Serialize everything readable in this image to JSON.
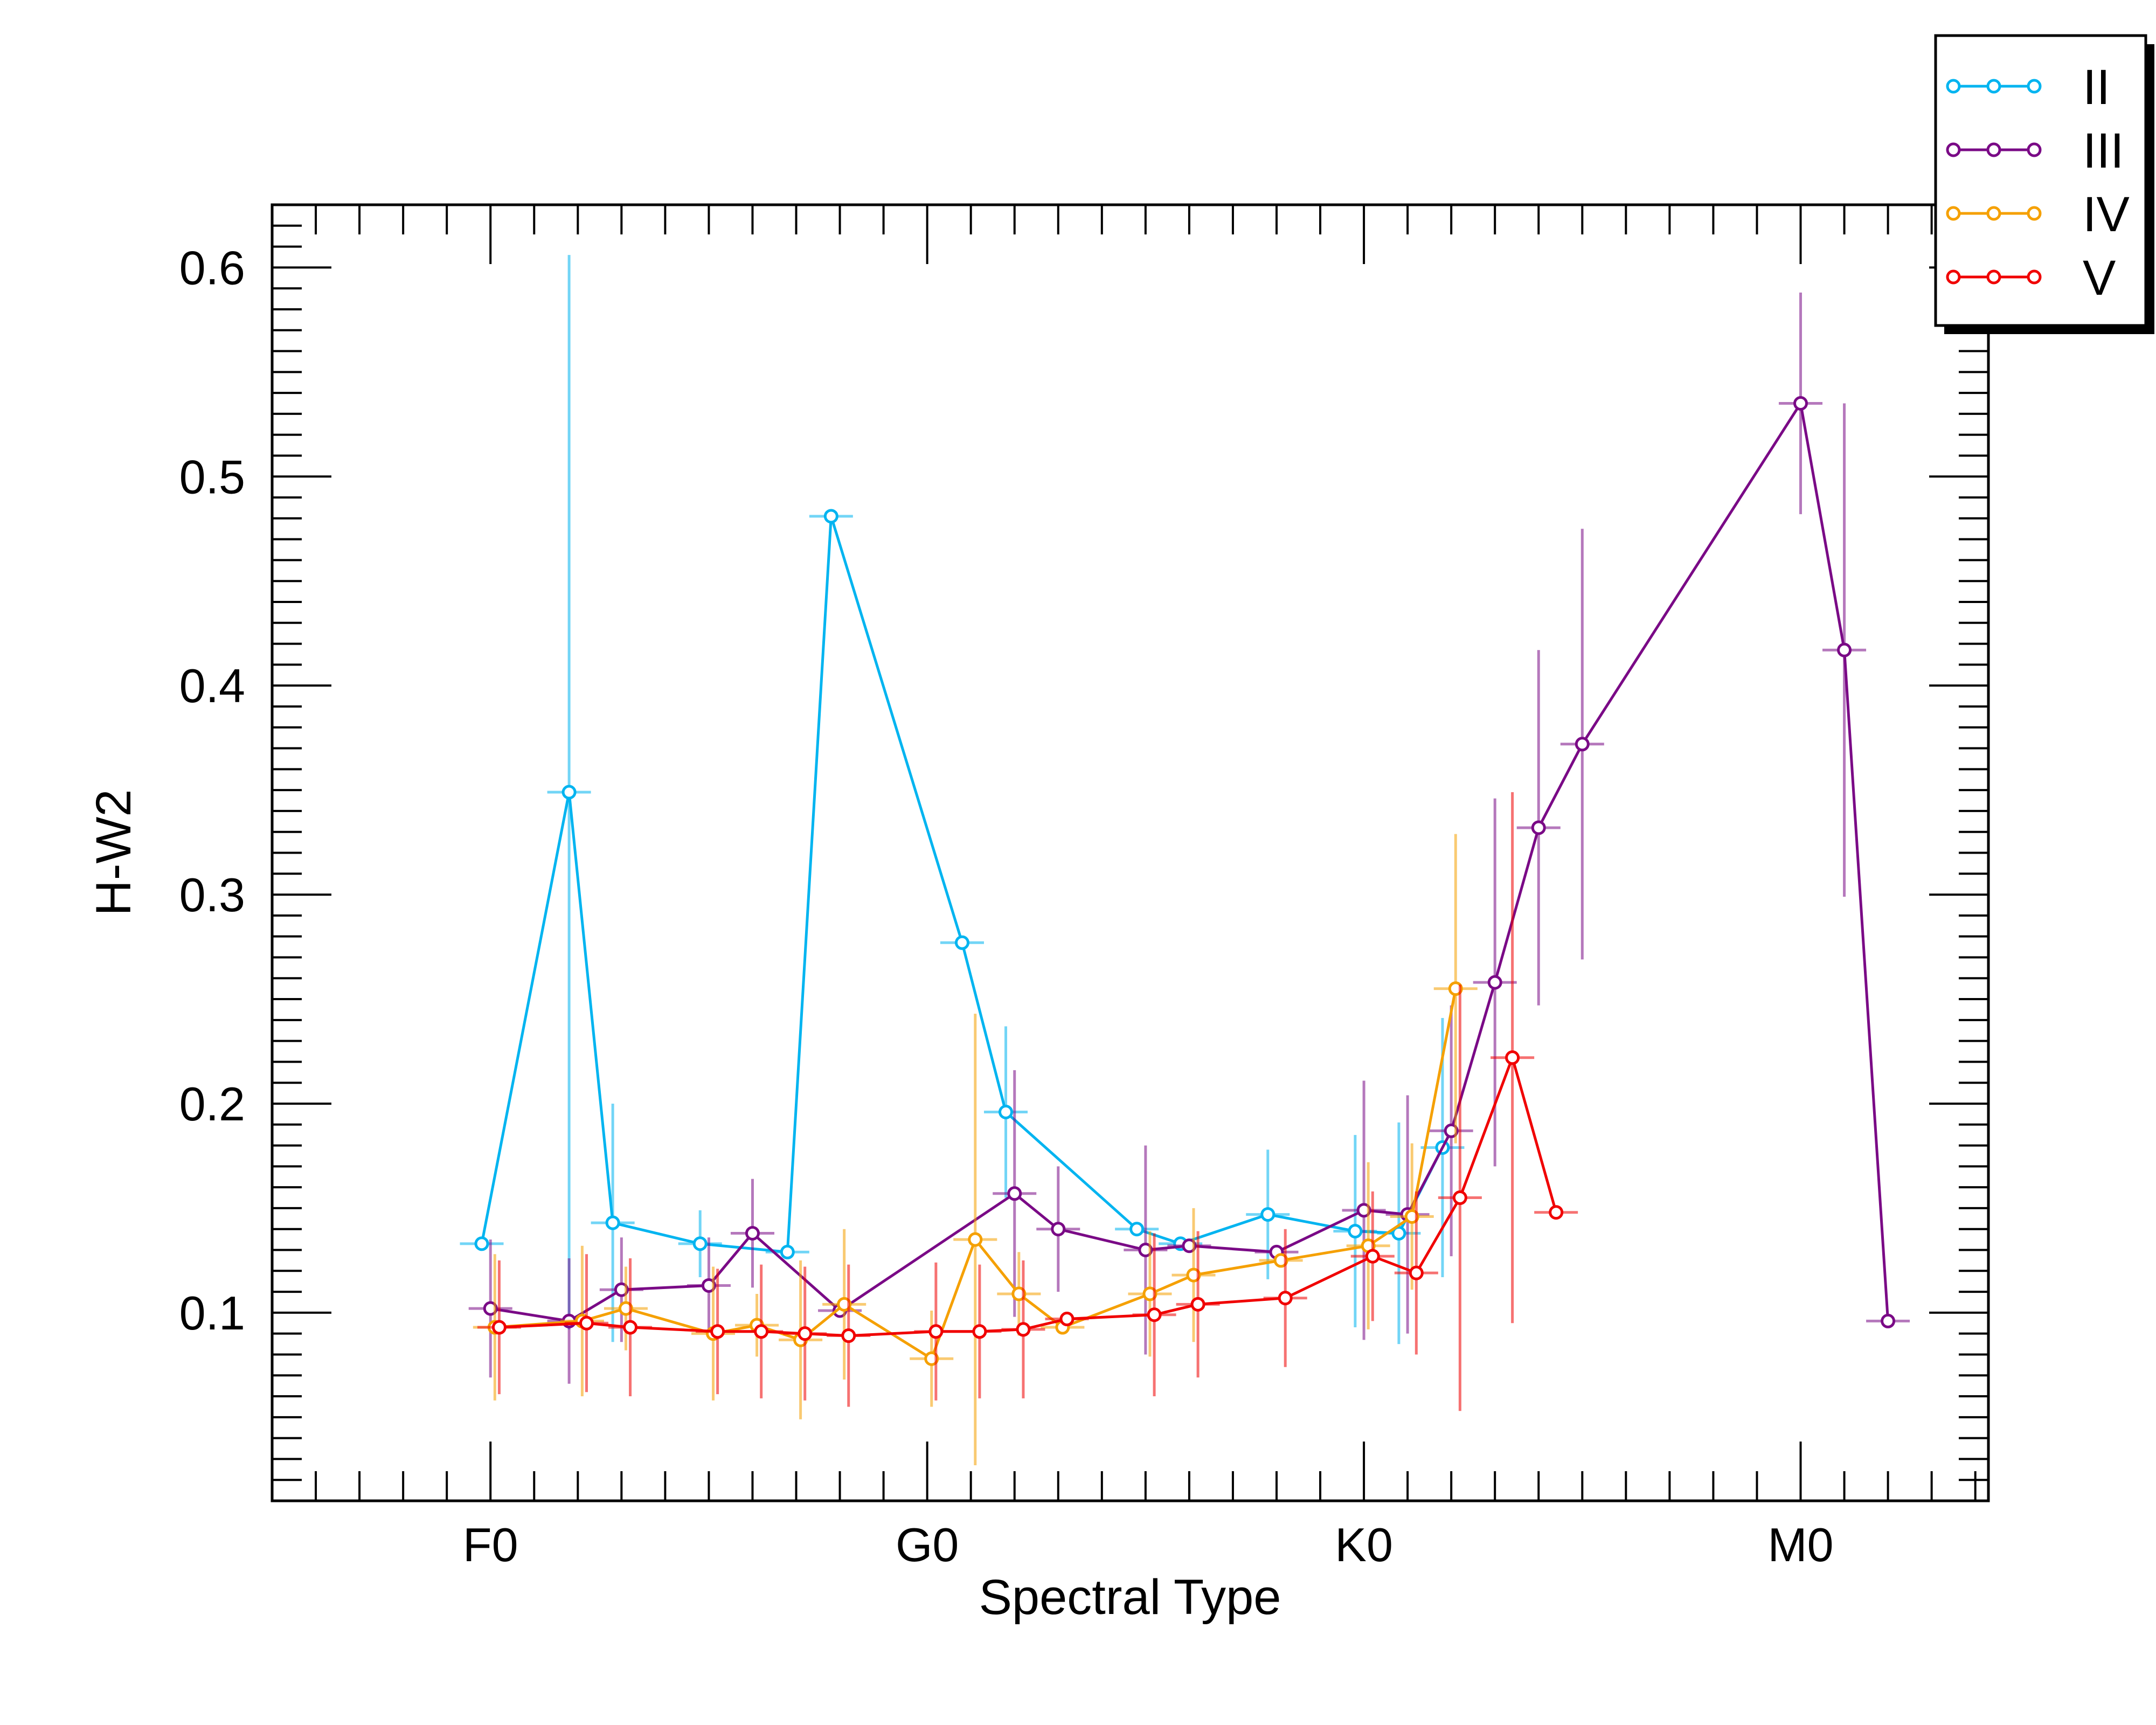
{
  "chart_data": {
    "type": "scatter",
    "xlabel": "Spectral Type",
    "ylabel": "H-W2",
    "xlim": [
      -5,
      34.3
    ],
    "ylim": [
      0.01,
      0.63
    ],
    "x_ticks": [
      {
        "value": 0,
        "label": "F0"
      },
      {
        "value": 10,
        "label": "G0"
      },
      {
        "value": 20,
        "label": "K0"
      },
      {
        "value": 30,
        "label": "M0"
      }
    ],
    "y_ticks": [
      {
        "value": 0.1,
        "label": "0.1"
      },
      {
        "value": 0.2,
        "label": "0.2"
      },
      {
        "value": 0.3,
        "label": "0.3"
      },
      {
        "value": 0.4,
        "label": "0.4"
      },
      {
        "value": 0.5,
        "label": "0.5"
      },
      {
        "value": 0.6,
        "label": "0.6"
      }
    ],
    "legend_position": "top-right",
    "grid": false,
    "series": [
      {
        "name": "II",
        "color": "#00b4f0",
        "points": [
          {
            "x": -0.2,
            "y": 0.133,
            "yerr": 0.0,
            "xerr": 0.5
          },
          {
            "x": 1.8,
            "y": 0.349,
            "yerr": 0.257,
            "xerr": 0.5
          },
          {
            "x": 2.8,
            "y": 0.143,
            "yerr": 0.057,
            "xerr": 0.5
          },
          {
            "x": 4.8,
            "y": 0.133,
            "yerr": 0.016,
            "xerr": 0.5
          },
          {
            "x": 6.8,
            "y": 0.129,
            "yerr": 0.0,
            "xerr": 0.5
          },
          {
            "x": 7.8,
            "y": 0.481,
            "yerr": 0.0,
            "xerr": 0.5
          },
          {
            "x": 10.8,
            "y": 0.277,
            "yerr": 0.0,
            "xerr": 0.5
          },
          {
            "x": 11.8,
            "y": 0.196,
            "yerr": 0.041,
            "xerr": 0.5
          },
          {
            "x": 14.8,
            "y": 0.14,
            "yerr": 0.0,
            "xerr": 0.5
          },
          {
            "x": 15.8,
            "y": 0.133,
            "yerr": 0.0,
            "xerr": 0.5
          },
          {
            "x": 17.8,
            "y": 0.147,
            "yerr": 0.031,
            "xerr": 0.5
          },
          {
            "x": 19.8,
            "y": 0.139,
            "yerr": 0.046,
            "xerr": 0.5
          },
          {
            "x": 20.8,
            "y": 0.138,
            "yerr": 0.053,
            "xerr": 0.5
          },
          {
            "x": 21.8,
            "y": 0.179,
            "yerr": 0.062,
            "xerr": 0.5
          }
        ]
      },
      {
        "name": "III",
        "color": "#7a0a86",
        "points": [
          {
            "x": 0.0,
            "y": 0.102,
            "yerr": 0.033,
            "xerr": 0.5
          },
          {
            "x": 1.8,
            "y": 0.096,
            "yerr": 0.03,
            "xerr": 0.5
          },
          {
            "x": 3.0,
            "y": 0.111,
            "yerr": 0.025,
            "xerr": 0.5
          },
          {
            "x": 5.0,
            "y": 0.113,
            "yerr": 0.023,
            "xerr": 0.5
          },
          {
            "x": 6.0,
            "y": 0.138,
            "yerr": 0.026,
            "xerr": 0.5
          },
          {
            "x": 8.0,
            "y": 0.101,
            "yerr": 0.0,
            "xerr": 0.5
          },
          {
            "x": 12.0,
            "y": 0.157,
            "yerr": 0.059,
            "xerr": 0.5
          },
          {
            "x": 13.0,
            "y": 0.14,
            "yerr": 0.03,
            "xerr": 0.5
          },
          {
            "x": 15.0,
            "y": 0.13,
            "yerr": 0.05,
            "xerr": 0.5
          },
          {
            "x": 16.0,
            "y": 0.132,
            "yerr": 0.0,
            "xerr": 0.5
          },
          {
            "x": 18.0,
            "y": 0.129,
            "yerr": 0.0,
            "xerr": 0.5
          },
          {
            "x": 20.0,
            "y": 0.149,
            "yerr": 0.062,
            "xerr": 0.5
          },
          {
            "x": 21.0,
            "y": 0.147,
            "yerr": 0.057,
            "xerr": 0.5
          },
          {
            "x": 22.0,
            "y": 0.187,
            "yerr": 0.06,
            "xerr": 0.5
          },
          {
            "x": 23.0,
            "y": 0.258,
            "yerr": 0.088,
            "xerr": 0.5
          },
          {
            "x": 24.0,
            "y": 0.332,
            "yerr": 0.085,
            "xerr": 0.5
          },
          {
            "x": 25.0,
            "y": 0.372,
            "yerr": 0.103,
            "xerr": 0.5
          },
          {
            "x": 30.0,
            "y": 0.535,
            "yerr": 0.053,
            "xerr": 0.5
          },
          {
            "x": 31.0,
            "y": 0.417,
            "yerr": 0.118,
            "xerr": 0.5
          },
          {
            "x": 32.0,
            "y": 0.096,
            "yerr": 0.0,
            "xerr": 0.5
          }
        ]
      },
      {
        "name": "IV",
        "color": "#f5a000",
        "points": [
          {
            "x": 0.1,
            "y": 0.093,
            "yerr": 0.035,
            "xerr": 0.5
          },
          {
            "x": 2.1,
            "y": 0.096,
            "yerr": 0.036,
            "xerr": 0.5
          },
          {
            "x": 3.1,
            "y": 0.102,
            "yerr": 0.02,
            "xerr": 0.5
          },
          {
            "x": 5.1,
            "y": 0.09,
            "yerr": 0.032,
            "xerr": 0.5
          },
          {
            "x": 6.1,
            "y": 0.094,
            "yerr": 0.015,
            "xerr": 0.5
          },
          {
            "x": 7.1,
            "y": 0.087,
            "yerr": 0.038,
            "xerr": 0.5
          },
          {
            "x": 8.1,
            "y": 0.104,
            "yerr": 0.036,
            "xerr": 0.5
          },
          {
            "x": 10.1,
            "y": 0.078,
            "yerr": 0.023,
            "xerr": 0.5
          },
          {
            "x": 11.1,
            "y": 0.135,
            "yerr": 0.108,
            "xerr": 0.5
          },
          {
            "x": 12.1,
            "y": 0.109,
            "yerr": 0.02,
            "xerr": 0.5
          },
          {
            "x": 13.1,
            "y": 0.093,
            "yerr": 0.0,
            "xerr": 0.5
          },
          {
            "x": 15.1,
            "y": 0.109,
            "yerr": 0.03,
            "xerr": 0.5
          },
          {
            "x": 16.1,
            "y": 0.118,
            "yerr": 0.032,
            "xerr": 0.5
          },
          {
            "x": 18.1,
            "y": 0.125,
            "yerr": 0.0,
            "xerr": 0.5
          },
          {
            "x": 20.1,
            "y": 0.132,
            "yerr": 0.04,
            "xerr": 0.5
          },
          {
            "x": 21.1,
            "y": 0.146,
            "yerr": 0.035,
            "xerr": 0.5
          },
          {
            "x": 22.1,
            "y": 0.255,
            "yerr": 0.074,
            "xerr": 0.5
          }
        ]
      },
      {
        "name": "V",
        "color": "#f00000",
        "points": [
          {
            "x": 0.2,
            "y": 0.093,
            "yerr": 0.032,
            "xerr": 0.5
          },
          {
            "x": 2.2,
            "y": 0.095,
            "yerr": 0.033,
            "xerr": 0.5
          },
          {
            "x": 3.2,
            "y": 0.093,
            "yerr": 0.033,
            "xerr": 0.5
          },
          {
            "x": 5.2,
            "y": 0.091,
            "yerr": 0.03,
            "xerr": 0.5
          },
          {
            "x": 6.2,
            "y": 0.091,
            "yerr": 0.032,
            "xerr": 0.5
          },
          {
            "x": 7.2,
            "y": 0.09,
            "yerr": 0.032,
            "xerr": 0.5
          },
          {
            "x": 8.2,
            "y": 0.089,
            "yerr": 0.034,
            "xerr": 0.5
          },
          {
            "x": 10.2,
            "y": 0.091,
            "yerr": 0.033,
            "xerr": 0.5
          },
          {
            "x": 11.2,
            "y": 0.091,
            "yerr": 0.032,
            "xerr": 0.5
          },
          {
            "x": 12.2,
            "y": 0.092,
            "yerr": 0.033,
            "xerr": 0.5
          },
          {
            "x": 13.2,
            "y": 0.097,
            "yerr": 0.0,
            "xerr": 0.5
          },
          {
            "x": 15.2,
            "y": 0.099,
            "yerr": 0.039,
            "xerr": 0.5
          },
          {
            "x": 16.2,
            "y": 0.104,
            "yerr": 0.035,
            "xerr": 0.5
          },
          {
            "x": 18.2,
            "y": 0.107,
            "yerr": 0.033,
            "xerr": 0.5
          },
          {
            "x": 20.2,
            "y": 0.127,
            "yerr": 0.031,
            "xerr": 0.5
          },
          {
            "x": 21.2,
            "y": 0.119,
            "yerr": 0.039,
            "xerr": 0.5
          },
          {
            "x": 22.2,
            "y": 0.155,
            "yerr": 0.102,
            "xerr": 0.5
          },
          {
            "x": 23.4,
            "y": 0.222,
            "yerr": 0.127,
            "xerr": 0.5
          },
          {
            "x": 24.4,
            "y": 0.148,
            "yerr": 0.0,
            "xerr": 0.5
          }
        ]
      }
    ]
  }
}
